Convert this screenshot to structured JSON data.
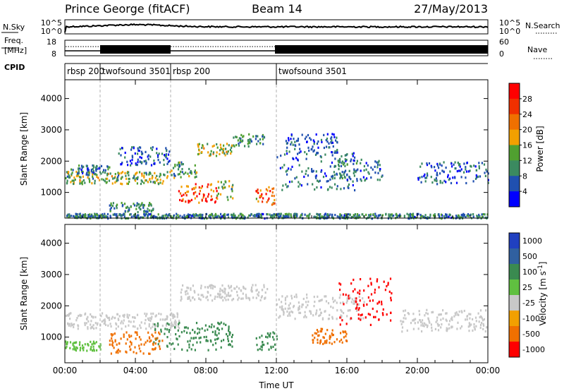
{
  "header": {
    "station": "Prince George (fitACF)",
    "beam": "Beam 14",
    "date": "27/May/2013"
  },
  "noise_panel": {
    "left_label": "N.Sky",
    "right_label": "N.Search",
    "left_ticks": [
      "10^5",
      "10^0"
    ],
    "right_ticks": [
      "10^5",
      "10^0"
    ]
  },
  "freq_panel": {
    "left_label_1": "Freq.",
    "left_label_2": "[MHz]",
    "right_label": "Nave",
    "left_ticks": [
      "18",
      "8"
    ],
    "right_ticks": [
      "60",
      "0"
    ]
  },
  "cpid_panel": {
    "label": "CPID",
    "segments": [
      {
        "start_hour": 0.0,
        "end_hour": 2.0,
        "name": "rbsp 200"
      },
      {
        "start_hour": 2.0,
        "end_hour": 6.0,
        "name": "twofsound 3501"
      },
      {
        "start_hour": 6.0,
        "end_hour": 12.0,
        "name": "rbsp 200"
      },
      {
        "start_hour": 12.0,
        "end_hour": 24.0,
        "name": "twofsound 3501"
      }
    ]
  },
  "x_axis": {
    "label": "Time UT",
    "tick_labels": [
      "00:00",
      "04:00",
      "08:00",
      "12:00",
      "16:00",
      "20:00",
      "00:00"
    ]
  },
  "chart_data": [
    {
      "type": "heatmap",
      "quantity": "Power",
      "ylabel": "Slant Range [km]",
      "xlabel": "Time UT",
      "xlim_hours": [
        0,
        24
      ],
      "ylim": [
        180,
        4600
      ],
      "y_ticks": [
        1000,
        2000,
        3000,
        4000
      ],
      "colorbar": {
        "label": "Power [dB]",
        "range": [
          0,
          32
        ],
        "tick_values": [
          4,
          8,
          12,
          16,
          20,
          24,
          28
        ],
        "tick_labels": [
          "4",
          "8",
          "12",
          "16",
          "20",
          "24",
          "28"
        ],
        "colors": [
          "#0000ff",
          "#2050b0",
          "#3b8a60",
          "#50a030",
          "#f2a000",
          "#f07000",
          "#f03000",
          "#ff0000"
        ]
      },
      "scatter_regions": [
        {
          "t0": 0.0,
          "t1": 6.0,
          "r0": 1300,
          "r1": 1700,
          "value": 14
        },
        {
          "t0": 0.3,
          "t1": 2.5,
          "r0": 1600,
          "r1": 1900,
          "value": 8
        },
        {
          "t0": 3.0,
          "t1": 6.0,
          "r0": 1900,
          "r1": 2500,
          "value": 6
        },
        {
          "t0": 2.5,
          "t1": 5.0,
          "r0": 400,
          "r1": 700,
          "value": 10
        },
        {
          "t0": 6.0,
          "t1": 7.5,
          "r0": 1500,
          "r1": 2000,
          "value": 12
        },
        {
          "t0": 7.5,
          "t1": 9.5,
          "r0": 2200,
          "r1": 2600,
          "value": 14
        },
        {
          "t0": 9.5,
          "t1": 11.3,
          "r0": 2500,
          "r1": 2900,
          "value": 10
        },
        {
          "t0": 6.4,
          "t1": 8.6,
          "r0": 700,
          "r1": 1300,
          "value": 26
        },
        {
          "t0": 8.6,
          "t1": 9.5,
          "r0": 800,
          "r1": 1400,
          "value": 14
        },
        {
          "t0": 10.8,
          "t1": 11.9,
          "r0": 600,
          "r1": 1200,
          "value": 24
        },
        {
          "t0": 12.0,
          "t1": 16.5,
          "r0": 1100,
          "r1": 2300,
          "value": 7
        },
        {
          "t0": 12.5,
          "t1": 15.5,
          "r0": 2300,
          "r1": 2900,
          "value": 6
        },
        {
          "t0": 15.0,
          "t1": 18.0,
          "r0": 1400,
          "r1": 2100,
          "value": 8
        },
        {
          "t0": 20.0,
          "t1": 24.0,
          "r0": 1300,
          "r1": 2000,
          "value": 7
        },
        {
          "t0": 0.0,
          "t1": 24.0,
          "r0": 200,
          "r1": 350,
          "value": 9
        }
      ]
    },
    {
      "type": "heatmap",
      "quantity": "Velocity",
      "ylabel": "Slant Range [km]",
      "xlabel": "Time UT",
      "xlim_hours": [
        0,
        24
      ],
      "ylim": [
        180,
        4600
      ],
      "y_ticks": [
        1000,
        2000,
        3000,
        4000
      ],
      "colorbar": {
        "label": "Velocity [m s^-1]",
        "tick_labels": [
          "1000",
          "500",
          "100",
          "25",
          "-25",
          "-100",
          "-500",
          "-1000"
        ],
        "colors": [
          "#2040c0",
          "#3060a0",
          "#3a8a50",
          "#60c040",
          "#c8c8c8",
          "#f2a000",
          "#f07000",
          "#ff0000"
        ]
      },
      "scatter_regions": [
        {
          "t0": 0.0,
          "t1": 6.5,
          "r0": 1300,
          "r1": 1800,
          "value": 0
        },
        {
          "t0": 6.5,
          "t1": 11.5,
          "r0": 2200,
          "r1": 2700,
          "value": 0
        },
        {
          "t0": 12.0,
          "t1": 17.0,
          "r0": 1600,
          "r1": 2400,
          "value": 0
        },
        {
          "t0": 19.0,
          "t1": 24.0,
          "r0": 1200,
          "r1": 1900,
          "value": 0
        },
        {
          "t0": 5.0,
          "t1": 9.5,
          "r0": 600,
          "r1": 1500,
          "value": 200
        },
        {
          "t0": 10.8,
          "t1": 12.0,
          "r0": 600,
          "r1": 1200,
          "value": 150
        },
        {
          "t0": 2.5,
          "t1": 5.5,
          "r0": 500,
          "r1": 1200,
          "value": -200
        },
        {
          "t0": 15.5,
          "t1": 18.5,
          "r0": 1400,
          "r1": 2900,
          "value": -700
        },
        {
          "t0": 14.0,
          "t1": 16.0,
          "r0": 800,
          "r1": 1300,
          "value": -200
        },
        {
          "t0": 0.0,
          "t1": 2.0,
          "r0": 600,
          "r1": 900,
          "value": 60
        }
      ]
    }
  ]
}
